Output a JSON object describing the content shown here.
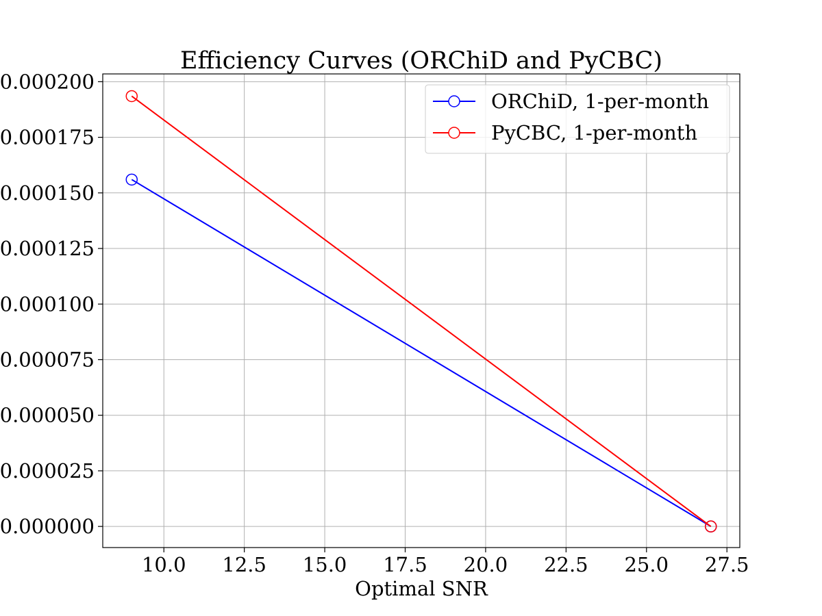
{
  "chart_data": {
    "type": "line",
    "title": "Efficiency Curves (ORChiD and PyCBC)",
    "xlabel": "Optimal SNR",
    "ylabel": "",
    "xlim": [
      8.1,
      27.9
    ],
    "ylim": [
      -9.5e-06,
      0.0002035
    ],
    "xticks": [
      10.0,
      12.5,
      15.0,
      17.5,
      20.0,
      22.5,
      25.0,
      27.5
    ],
    "xtick_labels": [
      "10.0",
      "12.5",
      "15.0",
      "17.5",
      "20.0",
      "22.5",
      "25.0",
      "27.5"
    ],
    "yticks": [
      0.0,
      2.5e-05,
      5e-05,
      7.5e-05,
      0.0001,
      0.000125,
      0.00015,
      0.000175,
      0.0002
    ],
    "ytick_labels": [
      "0.000000",
      "0.000025",
      "0.000050",
      "0.000075",
      "0.000100",
      "0.000125",
      "0.000150",
      "0.000175",
      "0.000200"
    ],
    "grid": true,
    "legend_position": "top-right",
    "marker": "open-circle",
    "series": [
      {
        "name": "ORChiD, 1-per-month",
        "color": "#0000ff",
        "x": [
          9.0,
          27.0
        ],
        "y": [
          0.000156,
          0.0
        ]
      },
      {
        "name": "PyCBC, 1-per-month",
        "color": "#ff0000",
        "x": [
          9.0,
          27.0
        ],
        "y": [
          0.0001935,
          0.0
        ]
      }
    ]
  }
}
